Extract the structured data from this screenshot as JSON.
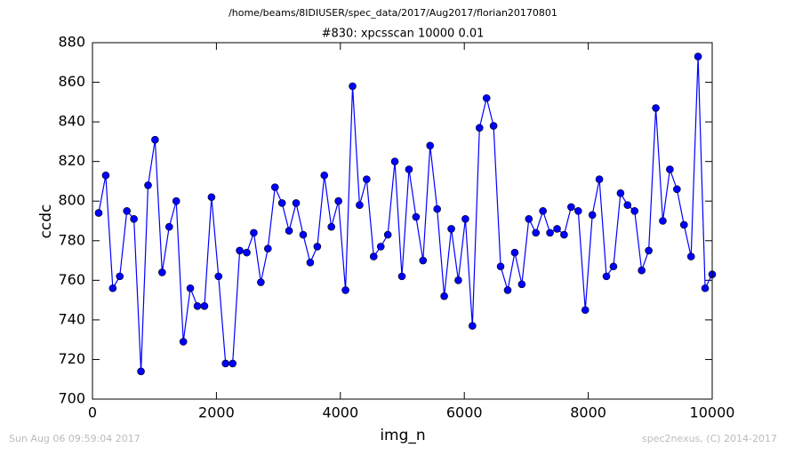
{
  "chart_data": {
    "type": "line",
    "suptitle": "/home/beams/8IDIUSER/spec_data/2017/Aug2017/florian20170801",
    "title": "#830: xpcsscan 10000 0.01",
    "x_label": "img_n",
    "y_label": "ccdc",
    "annotations": [
      "Sun Aug 06 09:59:04 2017",
      "spec2nexus, (C) 2014-2017"
    ],
    "x": [
      100,
      214,
      328,
      441,
      555,
      669,
      783,
      897,
      1010,
      1124,
      1238,
      1352,
      1466,
      1579,
      1693,
      1807,
      1921,
      2034,
      2148,
      2262,
      2376,
      2490,
      2603,
      2717,
      2831,
      2945,
      3059,
      3172,
      3286,
      3400,
      3514,
      3628,
      3741,
      3855,
      3969,
      4083,
      4197,
      4310,
      4424,
      4538,
      4652,
      4766,
      4879,
      4993,
      5107,
      5221,
      5334,
      5448,
      5562,
      5676,
      5790,
      5903,
      6017,
      6131,
      6245,
      6359,
      6472,
      6586,
      6700,
      6814,
      6928,
      7041,
      7155,
      7269,
      7383,
      7497,
      7610,
      7724,
      7838,
      7952,
      8066,
      8179,
      8293,
      8407,
      8521,
      8634,
      8748,
      8862,
      8976,
      9090,
      9203,
      9317,
      9431,
      9545,
      9659,
      9772,
      9886,
      10000
    ],
    "series": [
      {
        "color": "#0000ff",
        "values": [
          794,
          813,
          756,
          762,
          795,
          791,
          714,
          808,
          831,
          764,
          787,
          800,
          729,
          756,
          747,
          747,
          802,
          762,
          718,
          718,
          775,
          774,
          784,
          759,
          776,
          807,
          799,
          785,
          799,
          783,
          769,
          777,
          813,
          787,
          800,
          755,
          858,
          798,
          811,
          772,
          777,
          783,
          820,
          762,
          816,
          792,
          770,
          828,
          796,
          752,
          786,
          760,
          791,
          737,
          837,
          852,
          838,
          767,
          755,
          774,
          758,
          791,
          784,
          795,
          784,
          786,
          783,
          797,
          795,
          745,
          793,
          811,
          762,
          767,
          804,
          798,
          795,
          765,
          775,
          847,
          790,
          816,
          806,
          788,
          772,
          873,
          756,
          763
        ]
      }
    ],
    "xlim": [
      0,
      10000
    ],
    "xticks": [
      0,
      2000,
      4000,
      6000,
      8000,
      10000
    ],
    "ylim": [
      700,
      880
    ],
    "yticks": [
      700,
      720,
      740,
      760,
      780,
      800,
      820,
      840,
      860,
      880
    ],
    "grid": false
  }
}
